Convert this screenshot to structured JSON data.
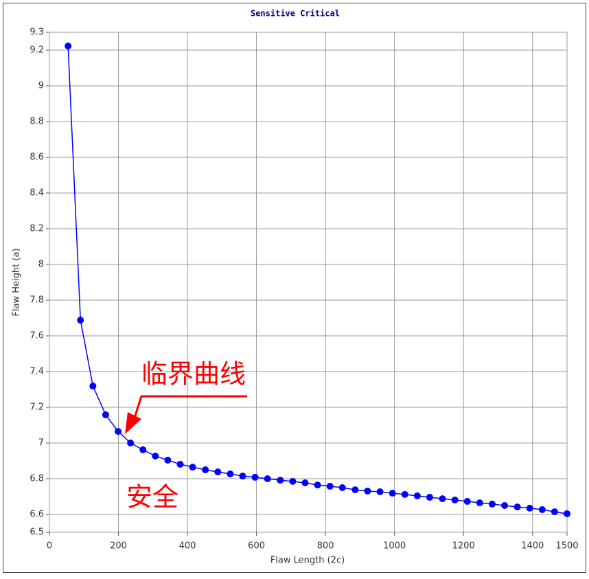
{
  "chart_data": {
    "type": "line",
    "title": "Sensitive Critical",
    "xlabel": "Flaw Length (2c)",
    "ylabel": "Flaw Height (a)",
    "x": [
      54,
      90,
      126,
      163,
      199,
      235,
      271,
      307,
      343,
      379,
      415,
      452,
      488,
      524,
      560,
      596,
      632,
      669,
      705,
      741,
      777,
      813,
      849,
      886,
      922,
      958,
      994,
      1030,
      1066,
      1102,
      1139,
      1175,
      1211,
      1247,
      1283,
      1319,
      1356,
      1392,
      1428,
      1464,
      1500
    ],
    "series": [
      {
        "name": "Critical",
        "color": "#0000ff",
        "values": [
          9.223,
          7.688,
          7.319,
          7.158,
          7.065,
          7.0,
          6.962,
          6.927,
          6.904,
          6.881,
          6.865,
          6.85,
          6.838,
          6.827,
          6.815,
          6.808,
          6.8,
          6.792,
          6.785,
          6.777,
          6.765,
          6.758,
          6.75,
          6.738,
          6.731,
          6.727,
          6.719,
          6.712,
          6.704,
          6.696,
          6.688,
          6.681,
          6.673,
          6.665,
          6.658,
          6.65,
          6.642,
          6.635,
          6.627,
          6.615,
          6.604
        ]
      }
    ],
    "xlim": [
      0,
      1500
    ],
    "xticks": [
      0,
      200,
      400,
      600,
      800,
      1000,
      1200,
      1400,
      1500
    ],
    "ylim": [
      6.5,
      9.3
    ],
    "yticks": [
      6.5,
      6.6,
      6.8,
      7,
      7.2,
      7.4,
      7.6,
      7.8,
      8,
      8.2,
      8.4,
      8.6,
      8.8,
      9,
      9.2,
      9.3
    ],
    "grid": true,
    "annotations": [
      "临界曲线",
      "安全"
    ],
    "annotation_color": "#ff0000"
  }
}
